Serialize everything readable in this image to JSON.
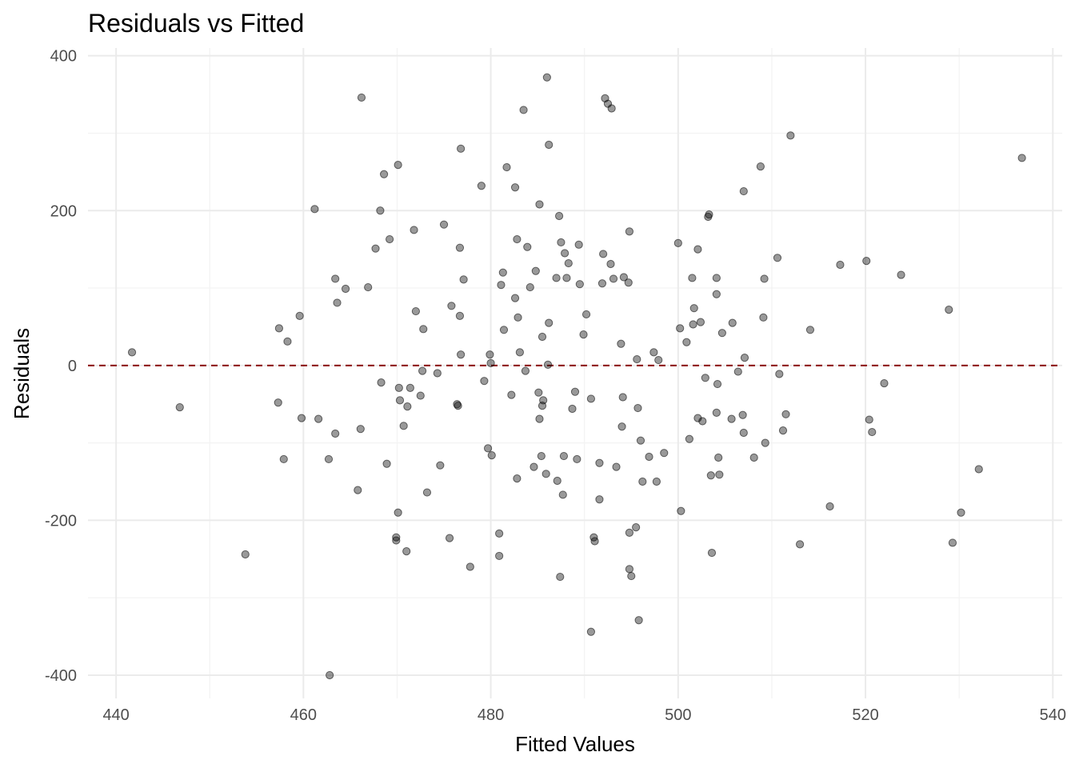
{
  "chart_data": {
    "type": "scatter",
    "title": "Residuals vs Fitted",
    "xlabel": "Fitted Values",
    "ylabel": "Residuals",
    "xlim": [
      437,
      541
    ],
    "ylim": [
      -430,
      410
    ],
    "x_ticks": [
      440,
      460,
      480,
      500,
      520,
      540
    ],
    "y_ticks": [
      -400,
      -200,
      0,
      200,
      400
    ],
    "x_tick_labels": [
      "440",
      "460",
      "480",
      "500",
      "520",
      "540"
    ],
    "y_tick_labels": [
      "-400",
      "-200",
      "0",
      "200",
      "400"
    ],
    "grid": true,
    "reference_line": {
      "y": 0,
      "style": "dashed",
      "color": "#8b0000"
    },
    "point_color": "#000000",
    "points": [
      [
        441.7,
        17
      ],
      [
        446.8,
        -54
      ],
      [
        453.8,
        -244
      ],
      [
        457.4,
        48
      ],
      [
        457.3,
        -48
      ],
      [
        457.9,
        -121
      ],
      [
        458.3,
        31
      ],
      [
        459.6,
        64
      ],
      [
        459.8,
        -68
      ],
      [
        461.2,
        202
      ],
      [
        461.6,
        -69
      ],
      [
        462.7,
        -121
      ],
      [
        462.8,
        -400
      ],
      [
        463.4,
        112
      ],
      [
        463.4,
        -88
      ],
      [
        463.6,
        81
      ],
      [
        464.5,
        99
      ],
      [
        465.8,
        -161
      ],
      [
        466.1,
        -82
      ],
      [
        466.2,
        346
      ],
      [
        466.9,
        101
      ],
      [
        467.7,
        151
      ],
      [
        468.2,
        200
      ],
      [
        468.3,
        -22
      ],
      [
        468.6,
        247
      ],
      [
        468.9,
        -127
      ],
      [
        469.2,
        163
      ],
      [
        469.9,
        -222
      ],
      [
        469.9,
        -226
      ],
      [
        470.1,
        259
      ],
      [
        470.1,
        -190
      ],
      [
        470.2,
        -29
      ],
      [
        470.3,
        -45
      ],
      [
        470.7,
        -78
      ],
      [
        471.0,
        -240
      ],
      [
        471.1,
        -53
      ],
      [
        471.4,
        -29
      ],
      [
        471.8,
        175
      ],
      [
        472.0,
        70
      ],
      [
        472.5,
        -39
      ],
      [
        472.7,
        -7
      ],
      [
        472.8,
        47
      ],
      [
        473.2,
        -164
      ],
      [
        474.3,
        -10
      ],
      [
        474.6,
        -129
      ],
      [
        475.0,
        182
      ],
      [
        475.6,
        -223
      ],
      [
        475.8,
        77
      ],
      [
        476.4,
        -50
      ],
      [
        476.5,
        -52
      ],
      [
        476.7,
        64
      ],
      [
        476.7,
        152
      ],
      [
        476.8,
        280
      ],
      [
        476.8,
        14
      ],
      [
        477.1,
        111
      ],
      [
        477.8,
        -260
      ],
      [
        479.0,
        232
      ],
      [
        479.3,
        -20
      ],
      [
        479.7,
        -107
      ],
      [
        479.9,
        14
      ],
      [
        480.0,
        3
      ],
      [
        480.1,
        -116
      ],
      [
        480.9,
        -217
      ],
      [
        480.9,
        -246
      ],
      [
        481.1,
        104
      ],
      [
        481.3,
        120
      ],
      [
        481.4,
        46
      ],
      [
        481.7,
        256
      ],
      [
        482.2,
        -38
      ],
      [
        482.6,
        230
      ],
      [
        482.6,
        87
      ],
      [
        482.8,
        163
      ],
      [
        482.8,
        -146
      ],
      [
        482.9,
        62
      ],
      [
        483.1,
        17
      ],
      [
        483.5,
        330
      ],
      [
        483.7,
        -7
      ],
      [
        483.9,
        153
      ],
      [
        484.2,
        101
      ],
      [
        484.6,
        -131
      ],
      [
        484.8,
        122
      ],
      [
        485.1,
        -35
      ],
      [
        485.2,
        208
      ],
      [
        485.2,
        -69
      ],
      [
        485.4,
        -117
      ],
      [
        485.5,
        -52
      ],
      [
        485.5,
        37
      ],
      [
        485.6,
        -45
      ],
      [
        485.9,
        -140
      ],
      [
        486.0,
        372
      ],
      [
        486.1,
        1
      ],
      [
        486.2,
        285
      ],
      [
        486.2,
        55
      ],
      [
        487.0,
        113
      ],
      [
        487.1,
        -149
      ],
      [
        487.3,
        193
      ],
      [
        487.4,
        -273
      ],
      [
        487.5,
        159
      ],
      [
        487.7,
        -167
      ],
      [
        487.8,
        -117
      ],
      [
        487.9,
        145
      ],
      [
        488.1,
        113
      ],
      [
        488.3,
        132
      ],
      [
        488.7,
        -56
      ],
      [
        489.0,
        -34
      ],
      [
        489.2,
        -121
      ],
      [
        489.4,
        156
      ],
      [
        489.5,
        105
      ],
      [
        489.9,
        40
      ],
      [
        490.2,
        66
      ],
      [
        490.7,
        -43
      ],
      [
        490.7,
        -344
      ],
      [
        491.0,
        -222
      ],
      [
        491.1,
        -227
      ],
      [
        491.6,
        -126
      ],
      [
        491.6,
        -173
      ],
      [
        491.9,
        106
      ],
      [
        492.0,
        144
      ],
      [
        492.2,
        345
      ],
      [
        492.5,
        338
      ],
      [
        492.8,
        131
      ],
      [
        492.9,
        332
      ],
      [
        493.1,
        112
      ],
      [
        493.4,
        -131
      ],
      [
        493.9,
        28
      ],
      [
        494.0,
        -79
      ],
      [
        494.1,
        -41
      ],
      [
        494.2,
        114
      ],
      [
        494.7,
        107
      ],
      [
        494.8,
        173
      ],
      [
        494.8,
        -216
      ],
      [
        494.8,
        -263
      ],
      [
        495.0,
        -272
      ],
      [
        495.5,
        -209
      ],
      [
        495.6,
        8
      ],
      [
        495.7,
        -55
      ],
      [
        495.8,
        -329
      ],
      [
        496.0,
        -97
      ],
      [
        496.2,
        -150
      ],
      [
        496.9,
        -118
      ],
      [
        497.4,
        17
      ],
      [
        497.7,
        -150
      ],
      [
        497.9,
        7
      ],
      [
        498.5,
        -113
      ],
      [
        500.0,
        158
      ],
      [
        500.2,
        48
      ],
      [
        500.3,
        -188
      ],
      [
        500.9,
        30
      ],
      [
        501.2,
        -95
      ],
      [
        501.5,
        113
      ],
      [
        501.6,
        53
      ],
      [
        501.7,
        74
      ],
      [
        502.1,
        -68
      ],
      [
        502.1,
        150
      ],
      [
        502.4,
        56
      ],
      [
        502.6,
        -72
      ],
      [
        502.9,
        -16
      ],
      [
        503.2,
        192
      ],
      [
        503.3,
        195
      ],
      [
        503.5,
        -142
      ],
      [
        503.6,
        -242
      ],
      [
        504.1,
        113
      ],
      [
        504.1,
        92
      ],
      [
        504.1,
        -61
      ],
      [
        504.2,
        -24
      ],
      [
        504.3,
        -119
      ],
      [
        504.4,
        -141
      ],
      [
        504.7,
        42
      ],
      [
        505.7,
        -69
      ],
      [
        505.8,
        55
      ],
      [
        506.4,
        -8
      ],
      [
        506.9,
        -64
      ],
      [
        507.0,
        225
      ],
      [
        507.0,
        -87
      ],
      [
        507.1,
        10
      ],
      [
        508.1,
        -119
      ],
      [
        508.8,
        257
      ],
      [
        509.1,
        62
      ],
      [
        509.2,
        112
      ],
      [
        509.3,
        -100
      ],
      [
        510.6,
        139
      ],
      [
        510.8,
        -11
      ],
      [
        511.2,
        -84
      ],
      [
        511.5,
        -63
      ],
      [
        512.0,
        297
      ],
      [
        513.0,
        -231
      ],
      [
        514.1,
        46
      ],
      [
        516.2,
        -182
      ],
      [
        517.3,
        130
      ],
      [
        520.1,
        135
      ],
      [
        520.4,
        -70
      ],
      [
        520.7,
        -86
      ],
      [
        522.0,
        -23
      ],
      [
        523.8,
        117
      ],
      [
        528.9,
        72
      ],
      [
        529.3,
        -229
      ],
      [
        530.2,
        -190
      ],
      [
        532.1,
        -134
      ],
      [
        536.7,
        268
      ]
    ]
  }
}
